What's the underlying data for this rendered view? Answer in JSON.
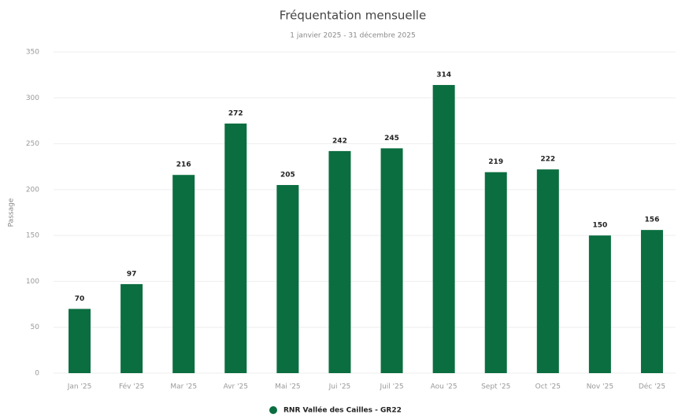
{
  "chart_data": {
    "type": "bar",
    "title": "Fréquentation mensuelle",
    "subtitle": "1 janvier 2025 - 31 décembre 2025",
    "y_label": "Passage",
    "categories": [
      "Jan '25",
      "Fév '25",
      "Mar '25",
      "Avr '25",
      "Mai '25",
      "Jui '25",
      "Juil '25",
      "Aou '25",
      "Sept '25",
      "Oct '25",
      "Nov '25",
      "Déc '25"
    ],
    "series": [
      {
        "name": "RNR Vallée des Cailles - GR22",
        "color": "#0b6e40",
        "values": [
          70,
          97,
          216,
          272,
          205,
          242,
          245,
          314,
          219,
          222,
          150,
          156
        ]
      }
    ],
    "ylim": [
      0,
      350
    ],
    "yticks": [
      0,
      50,
      100,
      150,
      200,
      250,
      300,
      350
    ],
    "grid": true,
    "legend": "bottom"
  }
}
